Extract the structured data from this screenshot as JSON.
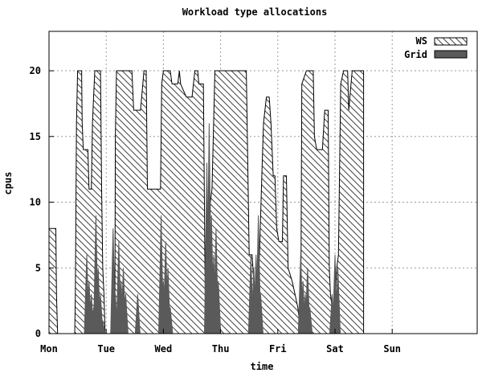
{
  "chart_data": {
    "type": "area",
    "title": "Workload type allocations",
    "xlabel": "time",
    "ylabel": "cpus",
    "ylim": [
      0,
      23
    ],
    "xlim": [
      0,
      7.5
    ],
    "x_ticks": [
      {
        "x": 0,
        "label": "Mon"
      },
      {
        "x": 1,
        "label": "Tue"
      },
      {
        "x": 2,
        "label": "Wed"
      },
      {
        "x": 3,
        "label": "Thu"
      },
      {
        "x": 4,
        "label": "Fri"
      },
      {
        "x": 5,
        "label": "Sat"
      },
      {
        "x": 6,
        "label": "Sun"
      }
    ],
    "y_ticks": [
      0,
      5,
      10,
      15,
      20
    ],
    "grid": true,
    "legend_position": "top-right",
    "series": [
      {
        "name": "WS",
        "style": "hatched",
        "color": "#555555",
        "points": [
          [
            0.0,
            0
          ],
          [
            0.0,
            8
          ],
          [
            0.12,
            8
          ],
          [
            0.13,
            3
          ],
          [
            0.15,
            0
          ],
          [
            0.45,
            0
          ],
          [
            0.46,
            3
          ],
          [
            0.48,
            16
          ],
          [
            0.5,
            20
          ],
          [
            0.57,
            20
          ],
          [
            0.58,
            16
          ],
          [
            0.6,
            14
          ],
          [
            0.68,
            14
          ],
          [
            0.7,
            11
          ],
          [
            0.74,
            11
          ],
          [
            0.76,
            16
          ],
          [
            0.78,
            18
          ],
          [
            0.8,
            20
          ],
          [
            0.9,
            20
          ],
          [
            0.92,
            11
          ],
          [
            0.94,
            5
          ],
          [
            0.96,
            3
          ],
          [
            0.98,
            0
          ],
          [
            1.15,
            0
          ],
          [
            1.16,
            15
          ],
          [
            1.18,
            20
          ],
          [
            1.45,
            20
          ],
          [
            1.48,
            17
          ],
          [
            1.6,
            17
          ],
          [
            1.64,
            19
          ],
          [
            1.66,
            20
          ],
          [
            1.7,
            20
          ],
          [
            1.72,
            11
          ],
          [
            1.95,
            11
          ],
          [
            1.97,
            19
          ],
          [
            2.0,
            20
          ],
          [
            2.12,
            20
          ],
          [
            2.15,
            19
          ],
          [
            2.25,
            19
          ],
          [
            2.28,
            20
          ],
          [
            2.3,
            19
          ],
          [
            2.4,
            18
          ],
          [
            2.5,
            18
          ],
          [
            2.55,
            20
          ],
          [
            2.6,
            20
          ],
          [
            2.62,
            19
          ],
          [
            2.7,
            19
          ],
          [
            2.73,
            3
          ],
          [
            2.75,
            0
          ],
          [
            2.8,
            0
          ],
          [
            2.82,
            10
          ],
          [
            2.85,
            11
          ],
          [
            2.9,
            20
          ],
          [
            3.45,
            20
          ],
          [
            3.5,
            6
          ],
          [
            3.55,
            6
          ],
          [
            3.58,
            4
          ],
          [
            3.63,
            2
          ],
          [
            3.68,
            6
          ],
          [
            3.72,
            12
          ],
          [
            3.75,
            16
          ],
          [
            3.8,
            18
          ],
          [
            3.85,
            18
          ],
          [
            3.88,
            16
          ],
          [
            3.92,
            12
          ],
          [
            3.95,
            12
          ],
          [
            3.98,
            8
          ],
          [
            4.02,
            7
          ],
          [
            4.08,
            7
          ],
          [
            4.1,
            12
          ],
          [
            4.15,
            12
          ],
          [
            4.18,
            5
          ],
          [
            4.25,
            4
          ],
          [
            4.3,
            3
          ],
          [
            4.35,
            2
          ],
          [
            4.4,
            0
          ],
          [
            4.42,
            19
          ],
          [
            4.5,
            20
          ],
          [
            4.62,
            20
          ],
          [
            4.64,
            15
          ],
          [
            4.68,
            14
          ],
          [
            4.78,
            14
          ],
          [
            4.82,
            17
          ],
          [
            4.88,
            17
          ],
          [
            4.9,
            5
          ],
          [
            4.92,
            3
          ],
          [
            4.95,
            2
          ],
          [
            5.0,
            2
          ],
          [
            5.03,
            5
          ],
          [
            5.06,
            6
          ],
          [
            5.1,
            19
          ],
          [
            5.15,
            20
          ],
          [
            5.22,
            20
          ],
          [
            5.24,
            17
          ],
          [
            5.26,
            18
          ],
          [
            5.3,
            20
          ],
          [
            5.5,
            20
          ]
        ]
      },
      {
        "name": "Grid",
        "style": "solid",
        "color": "#5a5a5a",
        "spikes": [
          [
            0.66,
            6
          ],
          [
            0.7,
            4
          ],
          [
            0.74,
            3
          ],
          [
            0.78,
            2
          ],
          [
            0.82,
            9
          ],
          [
            0.86,
            5
          ],
          [
            0.9,
            3
          ],
          [
            0.94,
            1
          ],
          [
            1.12,
            8
          ],
          [
            1.16,
            3
          ],
          [
            1.22,
            7
          ],
          [
            1.26,
            4
          ],
          [
            1.3,
            5
          ],
          [
            1.34,
            3
          ],
          [
            1.55,
            3
          ],
          [
            1.96,
            9
          ],
          [
            2.0,
            4
          ],
          [
            2.04,
            7
          ],
          [
            2.08,
            5
          ],
          [
            2.12,
            2
          ],
          [
            2.76,
            13
          ],
          [
            2.8,
            16
          ],
          [
            2.84,
            9
          ],
          [
            2.88,
            6
          ],
          [
            2.92,
            8
          ],
          [
            2.96,
            4
          ],
          [
            3.53,
            6
          ],
          [
            3.58,
            5
          ],
          [
            3.62,
            6
          ],
          [
            3.66,
            9
          ],
          [
            3.7,
            3
          ],
          [
            4.4,
            6
          ],
          [
            4.44,
            4
          ],
          [
            4.48,
            3
          ],
          [
            4.52,
            5
          ],
          [
            4.56,
            2
          ],
          [
            4.95,
            3
          ],
          [
            5.0,
            6
          ],
          [
            5.05,
            5
          ]
        ]
      }
    ]
  }
}
